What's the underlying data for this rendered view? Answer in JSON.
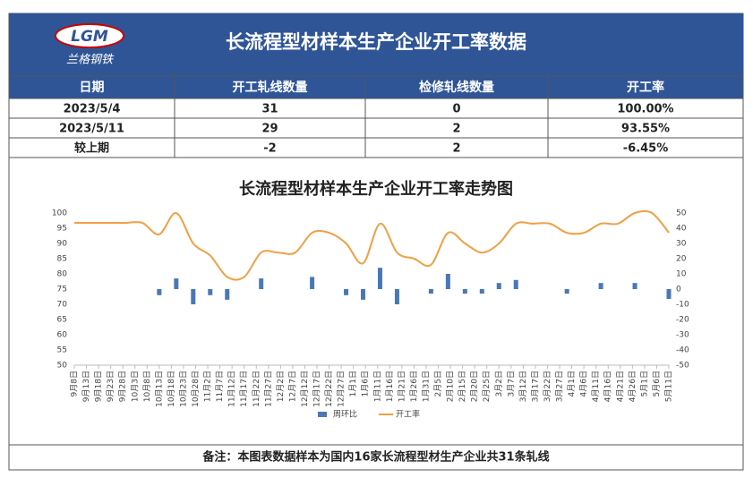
{
  "logo": {
    "mark": "LGM",
    "name": "兰格钢铁"
  },
  "header": {
    "title": "长流程型材样本生产企业开工率数据"
  },
  "table": {
    "columns": [
      "日期",
      "开工轧线数量",
      "检修轧线数量",
      "开工率"
    ],
    "rows": [
      [
        "2023/5/4",
        "31",
        "0",
        "100.00%"
      ],
      [
        "2023/5/11",
        "29",
        "2",
        "93.55%"
      ],
      [
        "较上期",
        "-2",
        "2",
        "-6.45%"
      ]
    ]
  },
  "chart_data": {
    "type": "bar-line",
    "title": "长流程型材样本生产企业开工率走势图",
    "x": [
      0,
      7,
      14,
      21,
      28,
      35,
      42,
      49,
      56,
      63,
      70,
      77,
      84,
      91,
      98,
      105,
      112,
      119,
      126,
      133,
      140,
      147,
      154,
      161,
      168,
      175,
      182,
      189,
      196,
      203,
      210,
      217,
      224,
      231,
      238,
      245
    ],
    "xlim": [
      0,
      245
    ],
    "xticks": [
      {
        "value": 0,
        "label": "9月8日"
      },
      {
        "value": 5,
        "label": "9月13日"
      },
      {
        "value": 10,
        "label": "9月18日"
      },
      {
        "value": 15,
        "label": "9月23日"
      },
      {
        "value": 20,
        "label": "9月28日"
      },
      {
        "value": 25,
        "label": "10月3日"
      },
      {
        "value": 30,
        "label": "10月8日"
      },
      {
        "value": 35,
        "label": "10月13日"
      },
      {
        "value": 40,
        "label": "10月18日"
      },
      {
        "value": 45,
        "label": "10月23日"
      },
      {
        "value": 50,
        "label": "10月28日"
      },
      {
        "value": 55,
        "label": "11月2日"
      },
      {
        "value": 60,
        "label": "11月7日"
      },
      {
        "value": 65,
        "label": "11月12日"
      },
      {
        "value": 70,
        "label": "11月17日"
      },
      {
        "value": 75,
        "label": "11月22日"
      },
      {
        "value": 80,
        "label": "11月27日"
      },
      {
        "value": 85,
        "label": "12月2日"
      },
      {
        "value": 90,
        "label": "12月7日"
      },
      {
        "value": 95,
        "label": "12月12日"
      },
      {
        "value": 100,
        "label": "12月17日"
      },
      {
        "value": 105,
        "label": "12月22日"
      },
      {
        "value": 110,
        "label": "12月27日"
      },
      {
        "value": 115,
        "label": "1月1日"
      },
      {
        "value": 120,
        "label": "1月6日"
      },
      {
        "value": 125,
        "label": "1月11日"
      },
      {
        "value": 130,
        "label": "1月16日"
      },
      {
        "value": 135,
        "label": "1月21日"
      },
      {
        "value": 140,
        "label": "1月26日"
      },
      {
        "value": 145,
        "label": "1月31日"
      },
      {
        "value": 150,
        "label": "2月5日"
      },
      {
        "value": 155,
        "label": "2月10日"
      },
      {
        "value": 160,
        "label": "2月15日"
      },
      {
        "value": 165,
        "label": "2月20日"
      },
      {
        "value": 170,
        "label": "2月25日"
      },
      {
        "value": 175,
        "label": "3月2日"
      },
      {
        "value": 180,
        "label": "3月7日"
      },
      {
        "value": 185,
        "label": "3月12日"
      },
      {
        "value": 190,
        "label": "3月17日"
      },
      {
        "value": 195,
        "label": "3月22日"
      },
      {
        "value": 200,
        "label": "3月27日"
      },
      {
        "value": 205,
        "label": "4月1日"
      },
      {
        "value": 210,
        "label": "4月6日"
      },
      {
        "value": 215,
        "label": "4月11日"
      },
      {
        "value": 220,
        "label": "4月16日"
      },
      {
        "value": 225,
        "label": "4月21日"
      },
      {
        "value": 230,
        "label": "4月26日"
      },
      {
        "value": 235,
        "label": "5月1日"
      },
      {
        "value": 240,
        "label": "5月6日"
      },
      {
        "value": 245,
        "label": "5月11日"
      }
    ],
    "ylim": [
      50,
      100
    ],
    "yticks": [
      50,
      55,
      60,
      65,
      70,
      75,
      80,
      85,
      90,
      95,
      100
    ],
    "y2lim": [
      -50,
      50
    ],
    "y2ticks": [
      -50,
      -40,
      -30,
      -20,
      -10,
      0,
      10,
      20,
      30,
      40,
      50
    ],
    "series": [
      {
        "name": "周环比",
        "color": "#4a78b5",
        "axis": "y2",
        "kind": "bar",
        "values": [
          0,
          0,
          0,
          0,
          0,
          -4,
          7,
          -10,
          -4,
          -7,
          0,
          7,
          0,
          0,
          8,
          0,
          -4,
          -7,
          14,
          -10,
          0,
          -3,
          10,
          -3,
          -3,
          4,
          6,
          0,
          0,
          -3,
          0,
          4,
          0,
          4,
          0,
          -6.45
        ]
      },
      {
        "name": "开工率",
        "color": "#f0a045",
        "axis": "y",
        "kind": "line",
        "values": [
          96.77,
          96.77,
          96.77,
          96.77,
          96.77,
          93,
          100,
          90,
          86,
          79,
          79,
          87,
          87,
          87,
          93.5,
          93.5,
          90,
          83.5,
          96.5,
          87,
          85,
          83,
          93.5,
          90,
          87,
          90,
          96.5,
          96.5,
          96.5,
          93.5,
          93.5,
          96.5,
          96.5,
          100,
          100,
          93.55
        ]
      }
    ]
  },
  "note": "备注：本图表数据样本为国内16家长流程型材生产企业共31条轧线"
}
